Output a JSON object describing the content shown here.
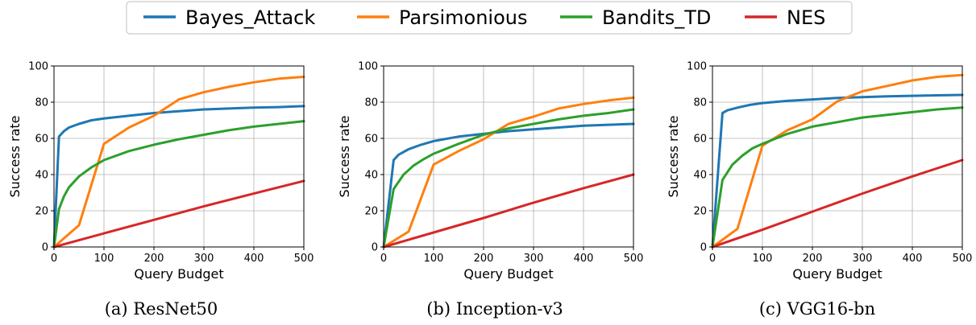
{
  "colors": {
    "Bayes_Attack": "#1f77b4",
    "Parsimonious": "#ff7f0e",
    "Bandits_TD": "#2ca02c",
    "NES": "#d62728"
  },
  "legend": {
    "placement": "top-center",
    "items": [
      "Bayes_Attack",
      "Parsimonious",
      "Bandits_TD",
      "NES"
    ]
  },
  "chart_data": [
    {
      "type": "line",
      "caption": "(a) ResNet50",
      "xlabel": "Query Budget",
      "ylabel": "Success rate",
      "xlim": [
        0,
        500
      ],
      "ylim": [
        0,
        100
      ],
      "xticks": [
        0,
        100,
        200,
        300,
        400,
        500
      ],
      "yticks": [
        0,
        20,
        40,
        60,
        80,
        100
      ],
      "grid": true,
      "series": [
        {
          "name": "Bayes_Attack",
          "x": [
            0,
            10,
            20,
            30,
            50,
            75,
            100,
            150,
            200,
            250,
            300,
            350,
            400,
            450,
            500
          ],
          "y": [
            0,
            61,
            64,
            66,
            68,
            70,
            71,
            72.5,
            74,
            75,
            76,
            76.5,
            77,
            77.3,
            77.8
          ]
        },
        {
          "name": "Parsimonious",
          "x": [
            0,
            50,
            100,
            150,
            200,
            250,
            300,
            350,
            400,
            450,
            500
          ],
          "y": [
            0,
            12,
            57,
            66,
            72.5,
            81.5,
            85.5,
            88.5,
            91,
            93,
            94
          ]
        },
        {
          "name": "Bandits_TD",
          "x": [
            0,
            10,
            20,
            30,
            50,
            75,
            100,
            150,
            200,
            250,
            300,
            350,
            400,
            450,
            500
          ],
          "y": [
            0,
            21,
            28,
            33,
            39,
            44,
            48,
            53,
            56.5,
            59.5,
            62,
            64.5,
            66.5,
            68,
            69.5
          ]
        },
        {
          "name": "NES",
          "x": [
            0,
            100,
            200,
            300,
            400,
            500
          ],
          "y": [
            0,
            7.5,
            15,
            22.5,
            29.5,
            36.5
          ]
        }
      ]
    },
    {
      "type": "line",
      "caption": "(b) Inception-v3",
      "xlabel": "Query Budget",
      "ylabel": "Success rate",
      "xlim": [
        0,
        500
      ],
      "ylim": [
        0,
        100
      ],
      "xticks": [
        0,
        100,
        200,
        300,
        400,
        500
      ],
      "yticks": [
        0,
        20,
        40,
        60,
        80,
        100
      ],
      "grid": true,
      "series": [
        {
          "name": "Bayes_Attack",
          "x": [
            0,
            20,
            30,
            50,
            75,
            100,
            150,
            200,
            250,
            300,
            350,
            400,
            450,
            500
          ],
          "y": [
            0,
            48,
            51,
            54,
            56.5,
            58.5,
            61,
            62.5,
            64,
            65,
            66,
            67,
            67.5,
            68
          ]
        },
        {
          "name": "Parsimonious",
          "x": [
            0,
            50,
            100,
            150,
            200,
            250,
            300,
            350,
            400,
            450,
            500
          ],
          "y": [
            0,
            8.5,
            45.5,
            53,
            59.5,
            68,
            72,
            76.5,
            79,
            81,
            82.5
          ]
        },
        {
          "name": "Bandits_TD",
          "x": [
            0,
            20,
            40,
            60,
            80,
            100,
            150,
            200,
            250,
            300,
            350,
            400,
            450,
            500
          ],
          "y": [
            0,
            32,
            40,
            45,
            48.5,
            51.5,
            57,
            62,
            65.5,
            68,
            70.5,
            72.5,
            74,
            76
          ]
        },
        {
          "name": "NES",
          "x": [
            0,
            100,
            200,
            300,
            400,
            500
          ],
          "y": [
            0,
            8,
            16,
            24.5,
            32.5,
            40
          ]
        }
      ]
    },
    {
      "type": "line",
      "caption": "(c) VGG16-bn",
      "xlabel": "Query Budget",
      "ylabel": "Success rate",
      "xlim": [
        0,
        500
      ],
      "ylim": [
        0,
        100
      ],
      "xticks": [
        0,
        100,
        200,
        300,
        400,
        500
      ],
      "yticks": [
        0,
        20,
        40,
        60,
        80,
        100
      ],
      "grid": true,
      "series": [
        {
          "name": "Bayes_Attack",
          "x": [
            0,
            20,
            30,
            50,
            75,
            100,
            150,
            200,
            250,
            300,
            350,
            400,
            450,
            500
          ],
          "y": [
            0,
            74,
            75.5,
            77,
            78.5,
            79.5,
            80.7,
            81.5,
            82.3,
            82.8,
            83.2,
            83.5,
            83.8,
            84
          ]
        },
        {
          "name": "Parsimonious",
          "x": [
            0,
            50,
            100,
            150,
            200,
            250,
            300,
            350,
            400,
            450,
            500
          ],
          "y": [
            0,
            10,
            56,
            64.5,
            70.5,
            80.5,
            86,
            89,
            92,
            94,
            95
          ]
        },
        {
          "name": "Bandits_TD",
          "x": [
            0,
            20,
            40,
            60,
            80,
            100,
            150,
            200,
            250,
            300,
            350,
            400,
            450,
            500
          ],
          "y": [
            0,
            37,
            45.5,
            50.5,
            54.5,
            57,
            62.5,
            66.5,
            69,
            71.5,
            73,
            74.5,
            76,
            77
          ]
        },
        {
          "name": "NES",
          "x": [
            0,
            100,
            200,
            300,
            400,
            500
          ],
          "y": [
            0,
            9.5,
            19.5,
            29.5,
            39,
            48
          ]
        }
      ]
    }
  ]
}
